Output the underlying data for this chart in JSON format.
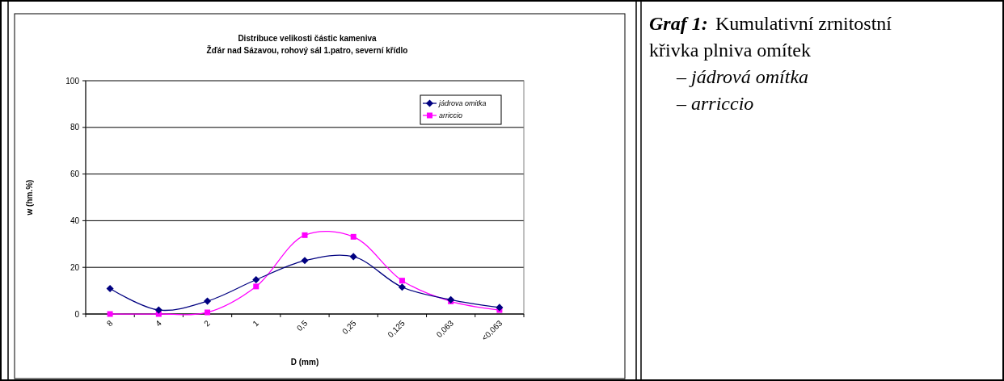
{
  "chart_data": {
    "type": "line",
    "title": "Distribuce velikosti částic kameniva",
    "subtitle": "Žďár nad Sázavou, rohový sál 1.patro, severní křídlo",
    "xlabel": "D (mm)",
    "ylabel": "w (hm.%)",
    "categories": [
      "8",
      "4",
      "2",
      "1",
      "0,5",
      "0,25",
      "0,125",
      "0,063",
      "<0,063"
    ],
    "series": [
      {
        "name": "jádrova omitka",
        "color": "#000080",
        "marker": "diamond",
        "values": [
          10.9,
          1.7,
          5.5,
          14.7,
          22.9,
          24.6,
          11.5,
          6.1,
          2.8
        ]
      },
      {
        "name": "arriccio",
        "color": "#ff00ff",
        "marker": "square",
        "values": [
          0,
          0,
          0.7,
          11.8,
          33.8,
          33.1,
          14.3,
          5.4,
          1.7
        ]
      }
    ],
    "ylim": [
      0,
      100
    ],
    "yticks": [
      0,
      20,
      40,
      60,
      80,
      100
    ],
    "grid": "y",
    "legend": "top right",
    "annotations": [
      "Graf 1:",
      "Kumulativní zrnitostní",
      "křivka plniva omítek",
      "– jádrová omítka",
      "– arriccio"
    ]
  }
}
